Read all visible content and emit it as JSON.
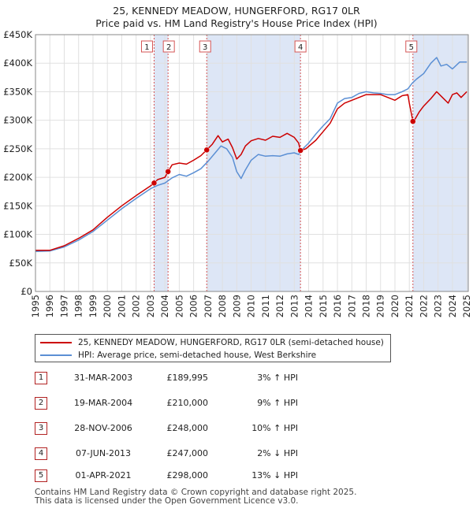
{
  "chart_data": {
    "type": "line",
    "title": "25, KENNEDY MEADOW, HUNGERFORD, RG17 0LR",
    "subtitle": "Price paid vs. HM Land Registry's House Price Index (HPI)",
    "xlabel": "",
    "ylabel": "",
    "xlim": [
      1995,
      2025.1
    ],
    "ylim": [
      0,
      450000
    ],
    "y_ticks": [
      0,
      50000,
      100000,
      150000,
      200000,
      250000,
      300000,
      350000,
      400000,
      450000
    ],
    "y_tick_labels": [
      "£0",
      "£50K",
      "£100K",
      "£150K",
      "£200K",
      "£250K",
      "£300K",
      "£350K",
      "£400K",
      "£450K"
    ],
    "x_ticks": [
      1995,
      1996,
      1997,
      1998,
      1999,
      2000,
      2001,
      2002,
      2003,
      2004,
      2005,
      2006,
      2007,
      2008,
      2009,
      2010,
      2011,
      2012,
      2013,
      2014,
      2015,
      2016,
      2017,
      2018,
      2019,
      2020,
      2021,
      2022,
      2023,
      2024,
      2025
    ],
    "x_tick_labels": [
      "1995",
      "1996",
      "1997",
      "1998",
      "1999",
      "2000",
      "2001",
      "2002",
      "2003",
      "2004",
      "2005",
      "2006",
      "2007",
      "2008",
      "2009",
      "2010",
      "2011",
      "2012",
      "2013",
      "2014",
      "2015",
      "2016",
      "2017",
      "2018",
      "2019",
      "2020",
      "2021",
      "2022",
      "2023",
      "2024",
      "2025"
    ],
    "grid": true,
    "legend_position": "bottom",
    "colors": {
      "property": "#cc0000",
      "hpi": "#5b8fd4",
      "shade": "#dde6f6",
      "vline": "#d55555"
    },
    "series": [
      {
        "name": "25, KENNEDY MEADOW, HUNGERFORD, RG17 0LR (semi-detached house)",
        "x": [
          1995.0,
          1996.0,
          1997.0,
          1998.0,
          1999.0,
          2000.0,
          2001.0,
          2002.0,
          2003.0,
          2003.25,
          2003.5,
          2004.0,
          2004.22,
          2004.5,
          2005.0,
          2005.5,
          2006.0,
          2006.5,
          2006.91,
          2007.3,
          2007.7,
          2008.0,
          2008.4,
          2008.7,
          2009.0,
          2009.3,
          2009.6,
          2010.0,
          2010.5,
          2011.0,
          2011.5,
          2012.0,
          2012.5,
          2013.0,
          2013.3,
          2013.43,
          2013.8,
          2014.5,
          2015.0,
          2015.5,
          2016.0,
          2016.5,
          2017.0,
          2017.5,
          2018.0,
          2018.5,
          2019.0,
          2019.5,
          2020.0,
          2020.5,
          2020.9,
          2021.0,
          2021.25,
          2021.4,
          2021.7,
          2022.0,
          2022.5,
          2022.9,
          2023.3,
          2023.7,
          2024.0,
          2024.3,
          2024.6,
          2025.0
        ],
        "values": [
          72000,
          72000,
          80000,
          93000,
          108000,
          130000,
          150000,
          168000,
          185000,
          189995,
          196000,
          200000,
          210000,
          222000,
          225000,
          223000,
          230000,
          238000,
          248000,
          258000,
          273000,
          262000,
          267000,
          252000,
          232000,
          240000,
          255000,
          264000,
          268000,
          265000,
          272000,
          270000,
          277000,
          270000,
          260000,
          247000,
          250000,
          265000,
          280000,
          295000,
          320000,
          330000,
          335000,
          340000,
          345000,
          345000,
          345000,
          340000,
          335000,
          343000,
          345000,
          330000,
          298000,
          302000,
          315000,
          325000,
          338000,
          350000,
          340000,
          330000,
          345000,
          348000,
          340000,
          350000
        ]
      },
      {
        "name": "HPI: Average price, semi-detached house, West Berkshire",
        "x": [
          1995.0,
          1996.0,
          1997.0,
          1998.0,
          1999.0,
          2000.0,
          2001.0,
          2002.0,
          2003.0,
          2003.5,
          2004.0,
          2004.5,
          2005.0,
          2005.5,
          2006.0,
          2006.5,
          2007.0,
          2007.5,
          2007.9,
          2008.3,
          2008.7,
          2009.0,
          2009.3,
          2009.6,
          2010.0,
          2010.5,
          2011.0,
          2011.5,
          2012.0,
          2012.5,
          2013.0,
          2013.3,
          2013.6,
          2014.0,
          2014.5,
          2015.0,
          2015.5,
          2016.0,
          2016.5,
          2017.0,
          2017.5,
          2018.0,
          2018.5,
          2019.0,
          2019.5,
          2020.0,
          2020.5,
          2020.9,
          2021.2,
          2021.5,
          2022.0,
          2022.5,
          2022.9,
          2023.2,
          2023.6,
          2024.0,
          2024.5,
          2025.0
        ],
        "values": [
          70000,
          71000,
          78000,
          90000,
          105000,
          125000,
          145000,
          163000,
          180000,
          186000,
          190000,
          199000,
          205000,
          202000,
          208000,
          215000,
          228000,
          243000,
          255000,
          250000,
          235000,
          210000,
          198000,
          213000,
          230000,
          240000,
          237000,
          238000,
          237000,
          241000,
          243000,
          240000,
          250000,
          260000,
          276000,
          290000,
          303000,
          330000,
          338000,
          340000,
          347000,
          350000,
          348000,
          347000,
          345000,
          345000,
          350000,
          355000,
          365000,
          372000,
          382000,
          400000,
          410000,
          395000,
          398000,
          390000,
          402000,
          402000
        ]
      }
    ],
    "transactions": [
      {
        "label": "1",
        "x": 2003.25,
        "value": 189995
      },
      {
        "label": "2",
        "x": 2004.22,
        "value": 210000
      },
      {
        "label": "3",
        "x": 2006.91,
        "value": 248000
      },
      {
        "label": "4",
        "x": 2013.43,
        "value": 247000
      },
      {
        "label": "5",
        "x": 2021.25,
        "value": 298000
      }
    ],
    "shaded_ranges": [
      [
        2003.25,
        2004.22
      ],
      [
        2006.91,
        2013.43
      ],
      [
        2021.25,
        2025.1
      ]
    ]
  },
  "legend": {
    "property_label": "25, KENNEDY MEADOW, HUNGERFORD, RG17 0LR (semi-detached house)",
    "hpi_label": "HPI: Average price, semi-detached house, West Berkshire"
  },
  "table": [
    {
      "num": "1",
      "date": "31-MAR-2003",
      "price": "£189,995",
      "hpi": "3% ↑ HPI"
    },
    {
      "num": "2",
      "date": "19-MAR-2004",
      "price": "£210,000",
      "hpi": "9% ↑ HPI"
    },
    {
      "num": "3",
      "date": "28-NOV-2006",
      "price": "£248,000",
      "hpi": "10% ↑ HPI"
    },
    {
      "num": "4",
      "date": "07-JUN-2013",
      "price": "£247,000",
      "hpi": "2% ↓ HPI"
    },
    {
      "num": "5",
      "date": "01-APR-2021",
      "price": "£298,000",
      "hpi": "13% ↓ HPI"
    }
  ],
  "footer": {
    "line1": "Contains HM Land Registry data © Crown copyright and database right 2025.",
    "line2": "This data is licensed under the Open Government Licence v3.0."
  }
}
